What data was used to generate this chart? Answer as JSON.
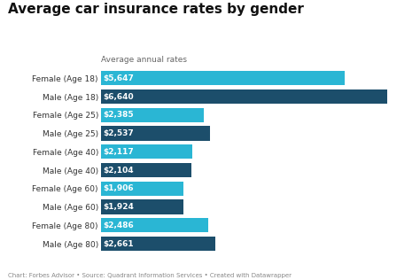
{
  "title": "Average car insurance rates by gender",
  "subtitle": "Average annual rates",
  "categories": [
    "Female (Age 18)",
    "Male (Age 18)",
    "Female (Age 25)",
    "Male (Age 25)",
    "Female (Age 40)",
    "Male (Age 40)",
    "Female (Age 60)",
    "Male (Age 60)",
    "Female (Age 80)",
    "Male (Age 80)"
  ],
  "values": [
    5647,
    6640,
    2385,
    2537,
    2117,
    2104,
    1906,
    1924,
    2486,
    2661
  ],
  "labels": [
    "$5,647",
    "$6,640",
    "$2,385",
    "$2,537",
    "$2,117",
    "$2,104",
    "$1,906",
    "$1,924",
    "$2,486",
    "$2,661"
  ],
  "colors": [
    "#2ab6d4",
    "#1c4e6b",
    "#2ab6d4",
    "#1c4e6b",
    "#2ab6d4",
    "#1c4e6b",
    "#2ab6d4",
    "#1c4e6b",
    "#2ab6d4",
    "#1c4e6b"
  ],
  "footer": "Chart: Forbes Advisor • Source: Quadrant Information Services • Created with Datawrapper",
  "background_color": "#ffffff",
  "title_fontsize": 11,
  "subtitle_fontsize": 6.5,
  "label_fontsize": 6.5,
  "ytick_fontsize": 6.5,
  "footer_fontsize": 5.0,
  "xlim": [
    0,
    7200
  ]
}
